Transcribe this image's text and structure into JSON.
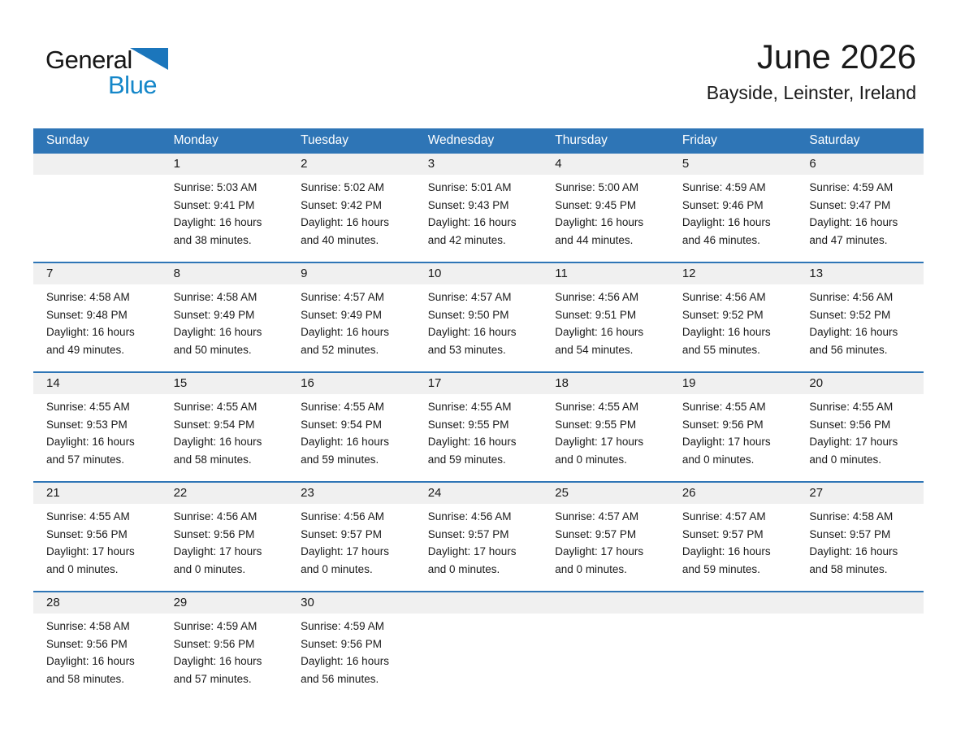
{
  "logo": {
    "part1": "General",
    "part2": "Blue"
  },
  "header": {
    "title": "June 2026",
    "subtitle": "Bayside, Leinster, Ireland"
  },
  "colors": {
    "header_blue": "#2E75B6",
    "row_border_blue": "#2E75B6",
    "number_strip_gray": "#F0F0F0",
    "logo_triangle_blue": "#1B76BC",
    "logo_text_blue": "#1587C9",
    "header_text_white": "#FFFFFF"
  },
  "calendar": {
    "day_headers": [
      "Sunday",
      "Monday",
      "Tuesday",
      "Wednesday",
      "Thursday",
      "Friday",
      "Saturday"
    ],
    "weeks": [
      {
        "cells": [
          null,
          {
            "day": "1",
            "sunrise": "Sunrise: 5:03 AM",
            "sunset": "Sunset: 9:41 PM",
            "daylight1": "Daylight: 16 hours",
            "daylight2": "and 38 minutes."
          },
          {
            "day": "2",
            "sunrise": "Sunrise: 5:02 AM",
            "sunset": "Sunset: 9:42 PM",
            "daylight1": "Daylight: 16 hours",
            "daylight2": "and 40 minutes."
          },
          {
            "day": "3",
            "sunrise": "Sunrise: 5:01 AM",
            "sunset": "Sunset: 9:43 PM",
            "daylight1": "Daylight: 16 hours",
            "daylight2": "and 42 minutes."
          },
          {
            "day": "4",
            "sunrise": "Sunrise: 5:00 AM",
            "sunset": "Sunset: 9:45 PM",
            "daylight1": "Daylight: 16 hours",
            "daylight2": "and 44 minutes."
          },
          {
            "day": "5",
            "sunrise": "Sunrise: 4:59 AM",
            "sunset": "Sunset: 9:46 PM",
            "daylight1": "Daylight: 16 hours",
            "daylight2": "and 46 minutes."
          },
          {
            "day": "6",
            "sunrise": "Sunrise: 4:59 AM",
            "sunset": "Sunset: 9:47 PM",
            "daylight1": "Daylight: 16 hours",
            "daylight2": "and 47 minutes."
          }
        ]
      },
      {
        "cells": [
          {
            "day": "7",
            "sunrise": "Sunrise: 4:58 AM",
            "sunset": "Sunset: 9:48 PM",
            "daylight1": "Daylight: 16 hours",
            "daylight2": "and 49 minutes."
          },
          {
            "day": "8",
            "sunrise": "Sunrise: 4:58 AM",
            "sunset": "Sunset: 9:49 PM",
            "daylight1": "Daylight: 16 hours",
            "daylight2": "and 50 minutes."
          },
          {
            "day": "9",
            "sunrise": "Sunrise: 4:57 AM",
            "sunset": "Sunset: 9:49 PM",
            "daylight1": "Daylight: 16 hours",
            "daylight2": "and 52 minutes."
          },
          {
            "day": "10",
            "sunrise": "Sunrise: 4:57 AM",
            "sunset": "Sunset: 9:50 PM",
            "daylight1": "Daylight: 16 hours",
            "daylight2": "and 53 minutes."
          },
          {
            "day": "11",
            "sunrise": "Sunrise: 4:56 AM",
            "sunset": "Sunset: 9:51 PM",
            "daylight1": "Daylight: 16 hours",
            "daylight2": "and 54 minutes."
          },
          {
            "day": "12",
            "sunrise": "Sunrise: 4:56 AM",
            "sunset": "Sunset: 9:52 PM",
            "daylight1": "Daylight: 16 hours",
            "daylight2": "and 55 minutes."
          },
          {
            "day": "13",
            "sunrise": "Sunrise: 4:56 AM",
            "sunset": "Sunset: 9:52 PM",
            "daylight1": "Daylight: 16 hours",
            "daylight2": "and 56 minutes."
          }
        ]
      },
      {
        "cells": [
          {
            "day": "14",
            "sunrise": "Sunrise: 4:55 AM",
            "sunset": "Sunset: 9:53 PM",
            "daylight1": "Daylight: 16 hours",
            "daylight2": "and 57 minutes."
          },
          {
            "day": "15",
            "sunrise": "Sunrise: 4:55 AM",
            "sunset": "Sunset: 9:54 PM",
            "daylight1": "Daylight: 16 hours",
            "daylight2": "and 58 minutes."
          },
          {
            "day": "16",
            "sunrise": "Sunrise: 4:55 AM",
            "sunset": "Sunset: 9:54 PM",
            "daylight1": "Daylight: 16 hours",
            "daylight2": "and 59 minutes."
          },
          {
            "day": "17",
            "sunrise": "Sunrise: 4:55 AM",
            "sunset": "Sunset: 9:55 PM",
            "daylight1": "Daylight: 16 hours",
            "daylight2": "and 59 minutes."
          },
          {
            "day": "18",
            "sunrise": "Sunrise: 4:55 AM",
            "sunset": "Sunset: 9:55 PM",
            "daylight1": "Daylight: 17 hours",
            "daylight2": "and 0 minutes."
          },
          {
            "day": "19",
            "sunrise": "Sunrise: 4:55 AM",
            "sunset": "Sunset: 9:56 PM",
            "daylight1": "Daylight: 17 hours",
            "daylight2": "and 0 minutes."
          },
          {
            "day": "20",
            "sunrise": "Sunrise: 4:55 AM",
            "sunset": "Sunset: 9:56 PM",
            "daylight1": "Daylight: 17 hours",
            "daylight2": "and 0 minutes."
          }
        ]
      },
      {
        "cells": [
          {
            "day": "21",
            "sunrise": "Sunrise: 4:55 AM",
            "sunset": "Sunset: 9:56 PM",
            "daylight1": "Daylight: 17 hours",
            "daylight2": "and 0 minutes."
          },
          {
            "day": "22",
            "sunrise": "Sunrise: 4:56 AM",
            "sunset": "Sunset: 9:56 PM",
            "daylight1": "Daylight: 17 hours",
            "daylight2": "and 0 minutes."
          },
          {
            "day": "23",
            "sunrise": "Sunrise: 4:56 AM",
            "sunset": "Sunset: 9:57 PM",
            "daylight1": "Daylight: 17 hours",
            "daylight2": "and 0 minutes."
          },
          {
            "day": "24",
            "sunrise": "Sunrise: 4:56 AM",
            "sunset": "Sunset: 9:57 PM",
            "daylight1": "Daylight: 17 hours",
            "daylight2": "and 0 minutes."
          },
          {
            "day": "25",
            "sunrise": "Sunrise: 4:57 AM",
            "sunset": "Sunset: 9:57 PM",
            "daylight1": "Daylight: 17 hours",
            "daylight2": "and 0 minutes."
          },
          {
            "day": "26",
            "sunrise": "Sunrise: 4:57 AM",
            "sunset": "Sunset: 9:57 PM",
            "daylight1": "Daylight: 16 hours",
            "daylight2": "and 59 minutes."
          },
          {
            "day": "27",
            "sunrise": "Sunrise: 4:58 AM",
            "sunset": "Sunset: 9:57 PM",
            "daylight1": "Daylight: 16 hours",
            "daylight2": "and 58 minutes."
          }
        ]
      },
      {
        "cells": [
          {
            "day": "28",
            "sunrise": "Sunrise: 4:58 AM",
            "sunset": "Sunset: 9:56 PM",
            "daylight1": "Daylight: 16 hours",
            "daylight2": "and 58 minutes."
          },
          {
            "day": "29",
            "sunrise": "Sunrise: 4:59 AM",
            "sunset": "Sunset: 9:56 PM",
            "daylight1": "Daylight: 16 hours",
            "daylight2": "and 57 minutes."
          },
          {
            "day": "30",
            "sunrise": "Sunrise: 4:59 AM",
            "sunset": "Sunset: 9:56 PM",
            "daylight1": "Daylight: 16 hours",
            "daylight2": "and 56 minutes."
          },
          null,
          null,
          null,
          null
        ]
      }
    ]
  }
}
